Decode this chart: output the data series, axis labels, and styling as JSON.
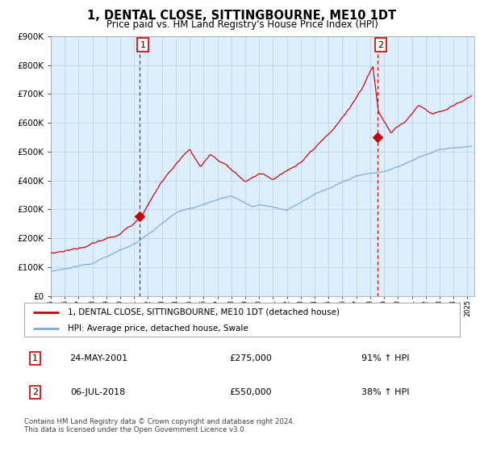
{
  "title": "1, DENTAL CLOSE, SITTINGBOURNE, ME10 1DT",
  "subtitle": "Price paid vs. HM Land Registry's House Price Index (HPI)",
  "legend_line1": "1, DENTAL CLOSE, SITTINGBOURNE, ME10 1DT (detached house)",
  "legend_line2": "HPI: Average price, detached house, Swale",
  "annotation1_label": "1",
  "annotation1_date": "24-MAY-2001",
  "annotation1_price": "£275,000",
  "annotation1_hpi": "91% ↑ HPI",
  "annotation2_label": "2",
  "annotation2_date": "06-JUL-2018",
  "annotation2_price": "£550,000",
  "annotation2_hpi": "38% ↑ HPI",
  "footnote": "Contains HM Land Registry data © Crown copyright and database right 2024.\nThis data is licensed under the Open Government Licence v3.0.",
  "red_color": "#cc0000",
  "blue_color": "#7aaadd",
  "bg_color": "#ddeeff",
  "grid_color": "#bbccdd",
  "ylim": [
    0,
    900000
  ],
  "yticks": [
    0,
    100000,
    200000,
    300000,
    400000,
    500000,
    600000,
    700000,
    800000,
    900000
  ],
  "year_start": 1995,
  "year_end": 2025,
  "sale1_year": 2001.39,
  "sale1_price": 275000,
  "sale2_year": 2018.51,
  "sale2_price": 550000
}
